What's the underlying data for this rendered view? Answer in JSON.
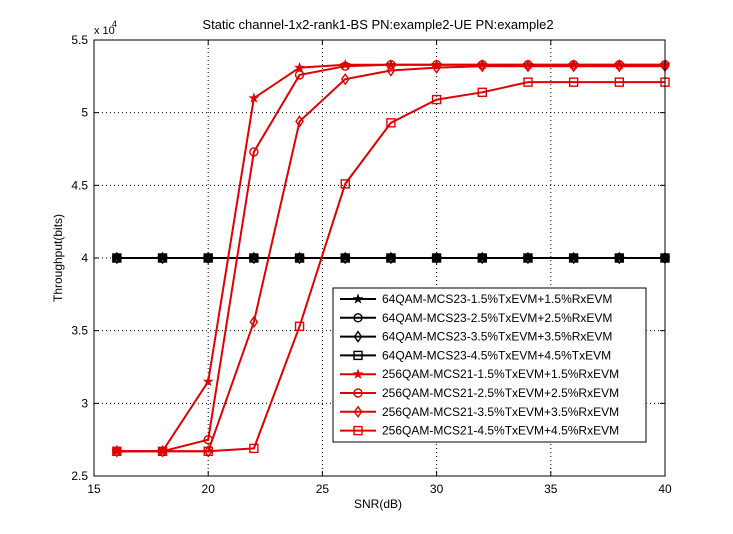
{
  "chart_data": {
    "type": "line",
    "title": "Static channel-1x2-rank1-BS PN:example2-UE PN:example2",
    "xlabel": "SNR(dB)",
    "ylabel": "Throughput(bits)",
    "y_exponent_label": "x 10",
    "y_exponent_value": "4",
    "xlim": [
      15,
      40
    ],
    "ylim": [
      2.5,
      5.5
    ],
    "y_scale_multiplier": 10000,
    "xticks": [
      "15",
      "20",
      "25",
      "30",
      "35",
      "40"
    ],
    "yticks": [
      "2.5",
      "3",
      "3.5",
      "4",
      "4.5",
      "5",
      "5.5"
    ],
    "grid": true,
    "legend_position": "lower-right",
    "x": [
      16,
      18,
      20,
      22,
      24,
      26,
      28,
      30,
      32,
      34,
      36,
      38,
      40
    ],
    "series": [
      {
        "name": "64QAM-MCS23-1.5%TxEVM+1.5%RxEVM",
        "color": "#000000",
        "marker": "star",
        "values": [
          4.0,
          4.0,
          4.0,
          4.0,
          4.0,
          4.0,
          4.0,
          4.0,
          4.0,
          4.0,
          4.0,
          4.0,
          4.0
        ]
      },
      {
        "name": "64QAM-MCS23-2.5%TxEVM+2.5%RxEVM",
        "color": "#000000",
        "marker": "circle",
        "values": [
          4.0,
          4.0,
          4.0,
          4.0,
          4.0,
          4.0,
          4.0,
          4.0,
          4.0,
          4.0,
          4.0,
          4.0,
          4.0
        ]
      },
      {
        "name": "64QAM-MCS23-3.5%TxEVM+3.5%RxEVM",
        "color": "#000000",
        "marker": "diamond",
        "values": [
          4.0,
          4.0,
          4.0,
          4.0,
          4.0,
          4.0,
          4.0,
          4.0,
          4.0,
          4.0,
          4.0,
          4.0,
          4.0
        ]
      },
      {
        "name": "64QAM-MCS23-4.5%TxEVM+4.5%TxEVM",
        "color": "#000000",
        "marker": "square",
        "values": [
          4.0,
          4.0,
          4.0,
          4.0,
          4.0,
          4.0,
          4.0,
          4.0,
          4.0,
          4.0,
          4.0,
          4.0,
          4.0
        ]
      },
      {
        "name": "256QAM-MCS21-1.5%TxEVM+1.5%RxEVM",
        "color": "#e00000",
        "marker": "star",
        "values": [
          2.67,
          2.67,
          3.15,
          5.1,
          5.31,
          5.33,
          5.33,
          5.33,
          5.33,
          5.33,
          5.33,
          5.33,
          5.33
        ]
      },
      {
        "name": "256QAM-MCS21-2.5%TxEVM+2.5%RxEVM",
        "color": "#e00000",
        "marker": "circle",
        "values": [
          2.67,
          2.67,
          2.75,
          4.73,
          5.26,
          5.32,
          5.33,
          5.33,
          5.33,
          5.33,
          5.33,
          5.33,
          5.33
        ]
      },
      {
        "name": "256QAM-MCS21-3.5%TxEVM+3.5%RxEVM",
        "color": "#e00000",
        "marker": "diamond",
        "values": [
          2.67,
          2.67,
          2.67,
          3.56,
          4.94,
          5.23,
          5.29,
          5.31,
          5.32,
          5.32,
          5.32,
          5.32,
          5.32
        ]
      },
      {
        "name": "256QAM-MCS21-4.5%TxEVM+4.5%RxEVM",
        "color": "#e00000",
        "marker": "square",
        "values": [
          2.67,
          2.67,
          2.67,
          2.69,
          3.53,
          4.51,
          4.93,
          5.09,
          5.14,
          5.21,
          5.21,
          5.21,
          5.21
        ]
      }
    ]
  }
}
